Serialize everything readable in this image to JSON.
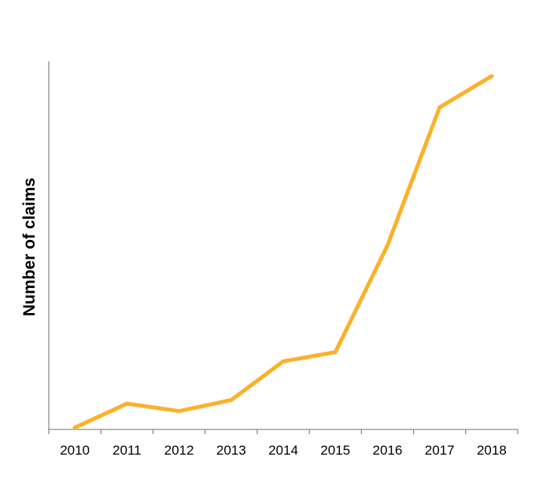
{
  "chart_data": {
    "type": "line",
    "title": "",
    "xlabel": "",
    "ylabel": "Number of claims",
    "categories": [
      "2010",
      "2011",
      "2012",
      "2013",
      "2014",
      "2015",
      "2016",
      "2017",
      "2018"
    ],
    "series": [
      {
        "values": [
          0.5,
          7,
          5,
          8,
          18.5,
          21,
          50,
          87.5,
          96
        ]
      }
    ],
    "ylim": [
      0,
      100
    ],
    "y_tick_labels_shown": false,
    "grid": false,
    "legend": "none",
    "colors": {
      "line": "#FBB12A",
      "axis": "#8C8C8C",
      "text": "#000000"
    }
  }
}
